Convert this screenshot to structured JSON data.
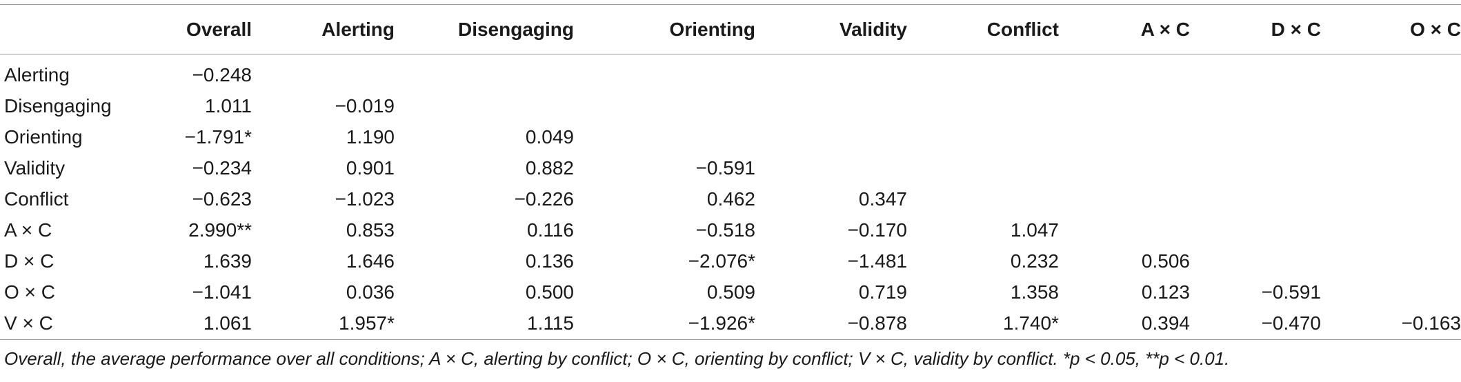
{
  "table": {
    "columns": [
      "",
      "Overall",
      "Alerting",
      "Disengaging",
      "Orienting",
      "Validity",
      "Conflict",
      "A × C",
      "D × C",
      "O × C"
    ],
    "rows": [
      {
        "label": "Alerting",
        "cells": [
          "−0.248",
          "",
          "",
          "",
          "",
          "",
          "",
          "",
          ""
        ]
      },
      {
        "label": "Disengaging",
        "cells": [
          "1.011",
          "−0.019",
          "",
          "",
          "",
          "",
          "",
          "",
          ""
        ]
      },
      {
        "label": "Orienting",
        "cells": [
          "−1.791*",
          "1.190",
          "0.049",
          "",
          "",
          "",
          "",
          "",
          ""
        ]
      },
      {
        "label": "Validity",
        "cells": [
          "−0.234",
          "0.901",
          "0.882",
          "−0.591",
          "",
          "",
          "",
          "",
          ""
        ]
      },
      {
        "label": "Conflict",
        "cells": [
          "−0.623",
          "−1.023",
          "−0.226",
          "0.462",
          "0.347",
          "",
          "",
          "",
          ""
        ]
      },
      {
        "label": "A × C",
        "cells": [
          "2.990**",
          "0.853",
          "0.116",
          "−0.518",
          "−0.170",
          "1.047",
          "",
          "",
          ""
        ]
      },
      {
        "label": "D × C",
        "cells": [
          "1.639",
          "1.646",
          "0.136",
          "−2.076*",
          "−1.481",
          "0.232",
          "0.506",
          "",
          ""
        ]
      },
      {
        "label": "O × C",
        "cells": [
          "−1.041",
          "0.036",
          "0.500",
          "0.509",
          "0.719",
          "1.358",
          "0.123",
          "−0.591",
          ""
        ]
      },
      {
        "label": "V × C",
        "cells": [
          "1.061",
          "1.957*",
          "1.115",
          "−1.926*",
          "−0.878",
          "1.740*",
          "0.394",
          "−0.470",
          "−0.163"
        ]
      }
    ]
  },
  "footnote": "Overall, the average performance over all conditions; A × C, alerting by conflict; O × C, orienting by conflict; V × C, validity by conflict. *p < 0.05, **p < 0.01."
}
